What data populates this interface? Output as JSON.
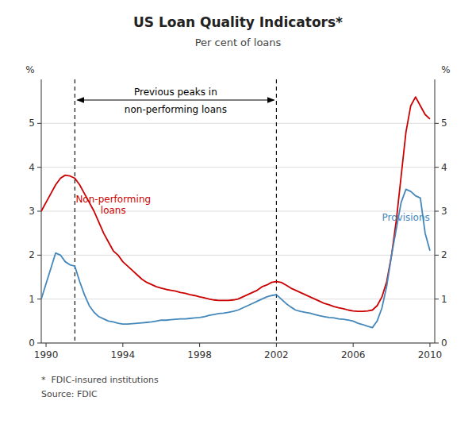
{
  "chart_data": {
    "type": "line",
    "title": "US Loan Quality Indicators*",
    "subtitle": "Per cent of loans",
    "ylabel": "%",
    "y2label": "%",
    "footnotes": [
      "*  FDIC-insured institutions",
      "Source: FDIC"
    ],
    "xlim": [
      1989.75,
      2010.25
    ],
    "xticks": [
      1990,
      1994,
      1998,
      2002,
      2006,
      2010
    ],
    "ylim": [
      0,
      6
    ],
    "yticks": [
      0,
      1,
      2,
      3,
      4,
      5
    ],
    "y2lim": [
      0,
      6
    ],
    "y2ticks": [
      0,
      1,
      2,
      3,
      4,
      5
    ],
    "grid": true,
    "annotations": [
      {
        "type": "span_arrow",
        "x_start": 1991.5,
        "x_end": 2002.0,
        "lines": [
          "Previous peaks in",
          "non-performing loans"
        ]
      }
    ],
    "x": [
      1989.75,
      1990.0,
      1990.25,
      1990.5,
      1990.75,
      1991.0,
      1991.25,
      1991.5,
      1991.75,
      1992.0,
      1992.25,
      1992.5,
      1992.75,
      1993.0,
      1993.25,
      1993.5,
      1993.75,
      1994.0,
      1994.25,
      1994.5,
      1994.75,
      1995.0,
      1995.25,
      1995.5,
      1995.75,
      1996.0,
      1996.25,
      1996.5,
      1996.75,
      1997.0,
      1997.25,
      1997.5,
      1997.75,
      1998.0,
      1998.25,
      1998.5,
      1998.75,
      1999.0,
      1999.25,
      1999.5,
      1999.75,
      2000.0,
      2000.25,
      2000.5,
      2000.75,
      2001.0,
      2001.25,
      2001.5,
      2001.75,
      2002.0,
      2002.25,
      2002.5,
      2002.75,
      2003.0,
      2003.25,
      2003.5,
      2003.75,
      2004.0,
      2004.25,
      2004.5,
      2004.75,
      2005.0,
      2005.25,
      2005.5,
      2005.75,
      2006.0,
      2006.25,
      2006.5,
      2006.75,
      2007.0,
      2007.25,
      2007.5,
      2007.75,
      2008.0,
      2008.25,
      2008.5,
      2008.75,
      2009.0,
      2009.25,
      2009.5,
      2009.75,
      2010.0
    ],
    "series": [
      {
        "name": "Non-performing\nloans",
        "color": "#cc0000",
        "values": [
          3.0,
          3.2,
          3.4,
          3.6,
          3.75,
          3.82,
          3.8,
          3.75,
          3.6,
          3.4,
          3.2,
          3.0,
          2.75,
          2.5,
          2.3,
          2.1,
          2.0,
          1.85,
          1.75,
          1.65,
          1.55,
          1.45,
          1.38,
          1.33,
          1.28,
          1.25,
          1.22,
          1.2,
          1.18,
          1.15,
          1.13,
          1.1,
          1.08,
          1.05,
          1.03,
          1.0,
          0.98,
          0.97,
          0.97,
          0.97,
          0.98,
          1.0,
          1.05,
          1.1,
          1.15,
          1.2,
          1.28,
          1.32,
          1.38,
          1.4,
          1.38,
          1.32,
          1.25,
          1.2,
          1.15,
          1.1,
          1.05,
          1.0,
          0.95,
          0.9,
          0.87,
          0.83,
          0.8,
          0.78,
          0.75,
          0.73,
          0.72,
          0.72,
          0.73,
          0.75,
          0.85,
          1.05,
          1.4,
          2.0,
          2.8,
          3.8,
          4.8,
          5.4,
          5.6,
          5.4,
          5.2,
          5.1
        ]
      },
      {
        "name": "Provisions",
        "color": "#4488bb",
        "values": [
          1.0,
          1.35,
          1.7,
          2.05,
          2.0,
          1.85,
          1.78,
          1.75,
          1.4,
          1.1,
          0.85,
          0.7,
          0.6,
          0.55,
          0.5,
          0.48,
          0.45,
          0.43,
          0.43,
          0.44,
          0.45,
          0.46,
          0.47,
          0.48,
          0.5,
          0.52,
          0.52,
          0.53,
          0.54,
          0.55,
          0.55,
          0.56,
          0.57,
          0.58,
          0.6,
          0.63,
          0.65,
          0.67,
          0.68,
          0.7,
          0.72,
          0.75,
          0.8,
          0.85,
          0.9,
          0.95,
          1.0,
          1.05,
          1.08,
          1.1,
          1.0,
          0.9,
          0.82,
          0.75,
          0.72,
          0.7,
          0.68,
          0.65,
          0.62,
          0.6,
          0.58,
          0.57,
          0.55,
          0.54,
          0.52,
          0.5,
          0.45,
          0.42,
          0.38,
          0.35,
          0.5,
          0.8,
          1.3,
          2.0,
          2.6,
          3.2,
          3.5,
          3.45,
          3.35,
          3.3,
          2.5,
          2.1
        ]
      }
    ]
  }
}
